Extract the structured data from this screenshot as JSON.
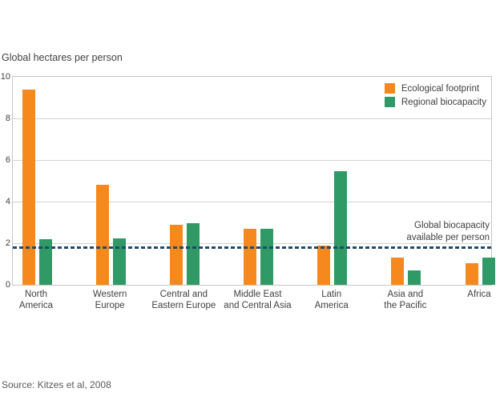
{
  "chart_data": {
    "type": "bar",
    "title": "Global hectares per person",
    "xlabel": "",
    "ylabel": "Global hectares per person",
    "ylim": [
      0,
      10
    ],
    "yticks": [
      0,
      2,
      4,
      6,
      8,
      10
    ],
    "grid": "horizontal",
    "legend_position": "top-right",
    "categories": [
      "North America",
      "Western Europe",
      "Central and Eastern Europe",
      "Middle East and Central Asia",
      "Latin America",
      "Asia and the Pacific",
      "Africa"
    ],
    "categories_lines": [
      [
        "North",
        "America"
      ],
      [
        "Western",
        "Europe"
      ],
      [
        "Central and",
        "Eastern Europe"
      ],
      [
        "Middle East",
        "and Central Asia"
      ],
      [
        "Latin",
        "America"
      ],
      [
        "Asia and",
        "the Pacific"
      ],
      [
        "Africa"
      ]
    ],
    "series": [
      {
        "name": "Ecological footprint",
        "color": "#F6891E",
        "values": [
          9.4,
          4.8,
          2.9,
          2.7,
          1.9,
          1.3,
          1.05
        ]
      },
      {
        "name": "Regional biocapacity",
        "color": "#2F9A65",
        "values": [
          2.2,
          2.25,
          2.95,
          2.7,
          5.45,
          0.7,
          1.3
        ]
      }
    ],
    "reference_line": {
      "value": 1.8,
      "style": "dashed",
      "color": "#1D4A6E",
      "label": "Global biocapacity available per person",
      "label_lines": [
        "Global biocapacity",
        "available per person"
      ]
    }
  },
  "colors": {
    "background": "#FFFFFF",
    "plot_border": "#C6C6C6",
    "gridline": "#D2D2D2",
    "text": "#414141",
    "source_text": "#595959"
  },
  "source": {
    "text": "Source: Kitzes et al, 2008"
  }
}
